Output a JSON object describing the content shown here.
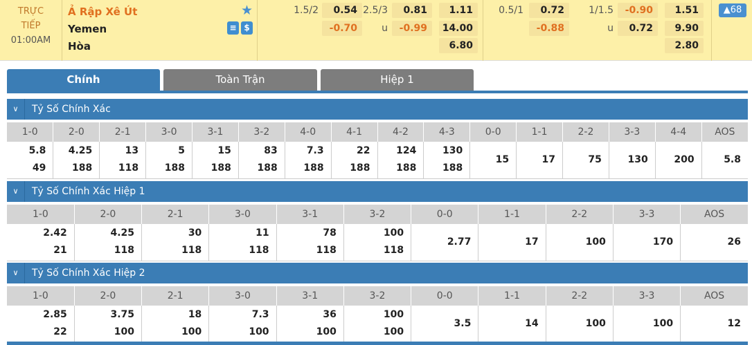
{
  "match": {
    "status1": "TRỰC",
    "status2": "TIẾP",
    "time": "01:00AM",
    "home": "Ả Rập Xê Út",
    "away": "Yemen",
    "draw": "Hòa",
    "stats_icon": "stats-icon",
    "money_icon": "$",
    "more_count": "▲68"
  },
  "odds": {
    "ft_hdp_line": "1.5/2",
    "ft_hdp_home": "0.54",
    "ft_hdp_away": "-0.70",
    "ft_ou_line": "2.5/3",
    "ft_ou_u": "u",
    "ft_ou_over": "0.81",
    "ft_ou_under": "-0.99",
    "ft_1x2_home": "1.11",
    "ft_1x2_away": "14.00",
    "ft_1x2_draw": "6.80",
    "h1_hdp_line": "0.5/1",
    "h1_hdp_home": "0.72",
    "h1_hdp_away": "-0.88",
    "h1_ou_line": "1/1.5",
    "h1_ou_u": "u",
    "h1_ou_over": "-0.90",
    "h1_ou_under": "0.72",
    "h1_1x2_home": "1.51",
    "h1_1x2_away": "9.90",
    "h1_1x2_draw": "2.80"
  },
  "tabs": [
    "Chính",
    "Toàn Trận",
    "Hiệp 1"
  ],
  "sections": [
    {
      "title": "Tỷ Số Chính Xác",
      "cols": [
        "1-0",
        "2-0",
        "2-1",
        "3-0",
        "3-1",
        "3-2",
        "4-0",
        "4-1",
        "4-2",
        "4-3",
        "0-0",
        "1-1",
        "2-2",
        "3-3",
        "4-4",
        "AOS"
      ],
      "home": [
        "5.8",
        "4.25",
        "13",
        "5",
        "15",
        "83",
        "7.3",
        "22",
        "124",
        "130",
        "15",
        "17",
        "75",
        "130",
        "200",
        "5.8"
      ],
      "away": [
        "49",
        "188",
        "118",
        "188",
        "188",
        "188",
        "188",
        "188",
        "188",
        "188",
        "",
        "",
        "",
        "",
        "",
        ""
      ]
    },
    {
      "title": "Tỷ Số Chính Xác Hiệp 1",
      "cols": [
        "1-0",
        "2-0",
        "2-1",
        "3-0",
        "3-1",
        "3-2",
        "0-0",
        "1-1",
        "2-2",
        "3-3",
        "AOS"
      ],
      "home": [
        "2.42",
        "4.25",
        "30",
        "11",
        "78",
        "100",
        "2.77",
        "17",
        "100",
        "170",
        "26"
      ],
      "away": [
        "21",
        "118",
        "118",
        "118",
        "118",
        "118",
        "",
        "",
        "",
        "",
        ""
      ]
    },
    {
      "title": "Tỷ Số Chính Xác Hiệp 2",
      "cols": [
        "1-0",
        "2-0",
        "2-1",
        "3-0",
        "3-1",
        "3-2",
        "0-0",
        "1-1",
        "2-2",
        "3-3",
        "AOS"
      ],
      "home": [
        "2.85",
        "3.75",
        "18",
        "7.3",
        "36",
        "100",
        "3.5",
        "14",
        "100",
        "100",
        "12"
      ],
      "away": [
        "22",
        "100",
        "100",
        "100",
        "100",
        "100",
        "",
        "",
        "",
        "",
        ""
      ]
    }
  ],
  "colors": {
    "accent": "#3b7db5",
    "top_bg": "#fdf0a8",
    "negative": "#e07020"
  }
}
